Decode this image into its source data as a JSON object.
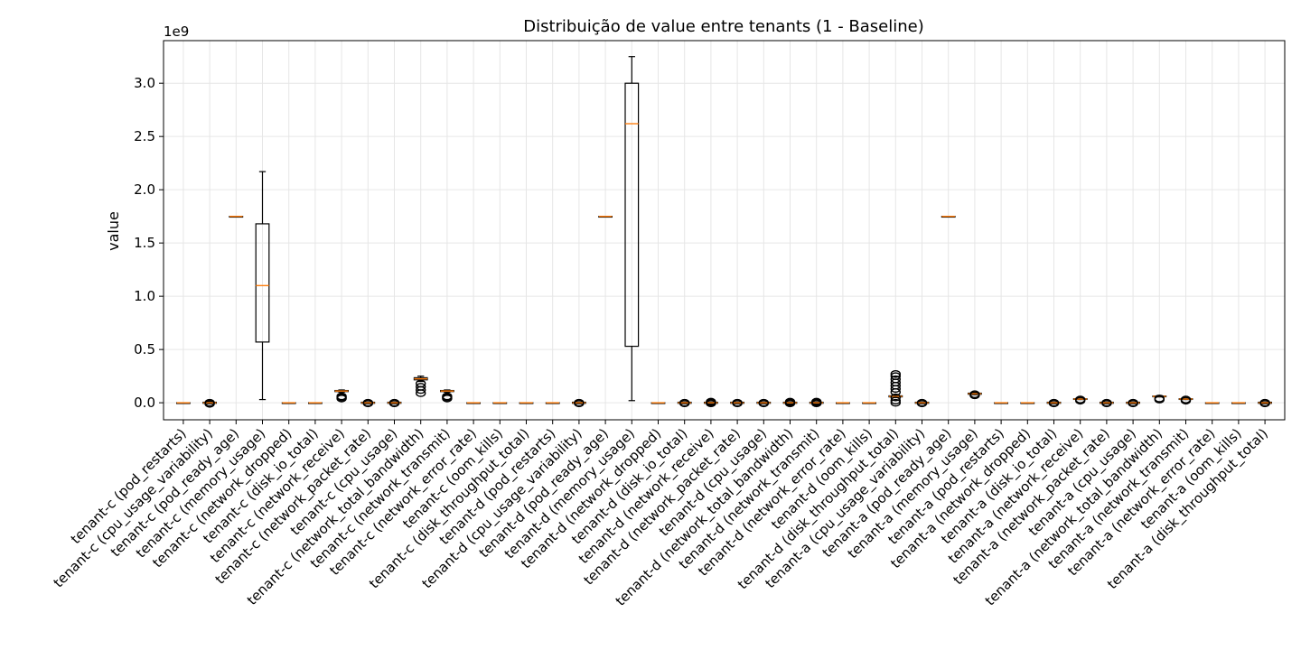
{
  "chart_data": {
    "type": "box",
    "title": "Distribuição de value entre tenants (1 - Baseline)",
    "ylabel": "value",
    "xlabel": "",
    "y_offset_label": "1e9",
    "y_scale": 1000000000,
    "ylim": [
      -0.16,
      3.4
    ],
    "yticks": [
      0.0,
      0.5,
      1.0,
      1.5,
      2.0,
      2.5,
      3.0
    ],
    "ytick_labels": [
      "0.0",
      "0.5",
      "1.0",
      "1.5",
      "2.0",
      "2.5",
      "3.0"
    ],
    "grid": true,
    "colors": {
      "box": "#000000",
      "median": "#ff7f0e",
      "grid": "#e6e6e6",
      "background": "#ffffff"
    },
    "boxes": [
      {
        "label": "tenant-c (pod_restarts)",
        "whislo": 0,
        "q1": 0,
        "med": 0,
        "q3": 0,
        "whishi": 0,
        "fliers": []
      },
      {
        "label": "tenant-c (cpu_usage_variability)",
        "whislo": -0.01,
        "q1": -0.005,
        "med": 0,
        "q3": 0.005,
        "whishi": 0.01,
        "fliers": [
          0.0,
          -0.01
        ]
      },
      {
        "label": "tenant-c (pod_ready_age)",
        "whislo": 1.75,
        "q1": 1.75,
        "med": 1.75,
        "q3": 1.75,
        "whishi": 1.75,
        "fliers": []
      },
      {
        "label": "tenant-c (memory_usage)",
        "whislo": 0.03,
        "q1": 0.57,
        "med": 1.1,
        "q3": 1.68,
        "whishi": 2.17,
        "fliers": []
      },
      {
        "label": "tenant-c (network_dropped)",
        "whislo": 0,
        "q1": 0,
        "med": 0,
        "q3": 0,
        "whishi": 0,
        "fliers": []
      },
      {
        "label": "tenant-c (disk_io_total)",
        "whislo": 0,
        "q1": 0,
        "med": 0,
        "q3": 0,
        "whishi": 0,
        "fliers": []
      },
      {
        "label": "tenant-c (network_receive)",
        "whislo": 0.1,
        "q1": 0.105,
        "med": 0.11,
        "q3": 0.115,
        "whishi": 0.12,
        "fliers": [
          0.04,
          0.05,
          0.06
        ]
      },
      {
        "label": "tenant-c (network_packet_rate)",
        "whislo": -0.01,
        "q1": -0.005,
        "med": 0,
        "q3": 0.005,
        "whishi": 0.01,
        "fliers": [
          0.0,
          -0.005
        ]
      },
      {
        "label": "tenant-c (cpu_usage)",
        "whislo": -0.01,
        "q1": -0.005,
        "med": 0,
        "q3": 0.005,
        "whishi": 0.01,
        "fliers": [
          0.0,
          -0.005
        ]
      },
      {
        "label": "tenant-c (network_total_bandwidth)",
        "whislo": 0.2,
        "q1": 0.215,
        "med": 0.225,
        "q3": 0.235,
        "whishi": 0.25,
        "fliers": [
          0.09,
          0.12,
          0.15,
          0.18
        ]
      },
      {
        "label": "tenant-c (network_transmit)",
        "whislo": 0.1,
        "q1": 0.105,
        "med": 0.11,
        "q3": 0.115,
        "whishi": 0.12,
        "fliers": [
          0.04,
          0.05,
          0.06
        ]
      },
      {
        "label": "tenant-c (network_error_rate)",
        "whislo": 0,
        "q1": 0,
        "med": 0,
        "q3": 0,
        "whishi": 0,
        "fliers": []
      },
      {
        "label": "tenant-c (oom_kills)",
        "whislo": 0,
        "q1": 0,
        "med": 0,
        "q3": 0,
        "whishi": 0,
        "fliers": []
      },
      {
        "label": "tenant-c (disk_throughput_total)",
        "whislo": 0,
        "q1": 0,
        "med": 0,
        "q3": 0,
        "whishi": 0,
        "fliers": []
      },
      {
        "label": "tenant-d (pod_restarts)",
        "whislo": 0,
        "q1": 0,
        "med": 0,
        "q3": 0,
        "whishi": 0,
        "fliers": []
      },
      {
        "label": "tenant-d (cpu_usage_variability)",
        "whislo": -0.01,
        "q1": -0.005,
        "med": 0,
        "q3": 0.005,
        "whishi": 0.01,
        "fliers": [
          0.0,
          -0.005
        ]
      },
      {
        "label": "tenant-d (pod_ready_age)",
        "whislo": 1.75,
        "q1": 1.75,
        "med": 1.75,
        "q3": 1.75,
        "whishi": 1.75,
        "fliers": []
      },
      {
        "label": "tenant-d (memory_usage)",
        "whislo": 0.02,
        "q1": 0.53,
        "med": 2.62,
        "q3": 3.0,
        "whishi": 3.25,
        "fliers": []
      },
      {
        "label": "tenant-d (network_dropped)",
        "whislo": 0,
        "q1": 0,
        "med": 0,
        "q3": 0,
        "whishi": 0,
        "fliers": []
      },
      {
        "label": "tenant-d (disk_io_total)",
        "whislo": -0.01,
        "q1": -0.005,
        "med": 0,
        "q3": 0.005,
        "whishi": 0.01,
        "fliers": [
          0.0,
          -0.005
        ]
      },
      {
        "label": "tenant-d (network_receive)",
        "whislo": -0.01,
        "q1": -0.005,
        "med": 0,
        "q3": 0.005,
        "whishi": 0.01,
        "fliers": [
          0.0,
          0.01,
          -0.005
        ]
      },
      {
        "label": "tenant-d (network_packet_rate)",
        "whislo": -0.01,
        "q1": -0.005,
        "med": 0,
        "q3": 0.005,
        "whishi": 0.01,
        "fliers": [
          0.0,
          -0.005
        ]
      },
      {
        "label": "tenant-d (cpu_usage)",
        "whislo": -0.01,
        "q1": -0.005,
        "med": 0,
        "q3": 0.005,
        "whishi": 0.01,
        "fliers": [
          0.0,
          -0.005
        ]
      },
      {
        "label": "tenant-d (network_total_bandwidth)",
        "whislo": -0.01,
        "q1": -0.005,
        "med": 0,
        "q3": 0.005,
        "whishi": 0.01,
        "fliers": [
          0.0,
          0.01,
          -0.005
        ]
      },
      {
        "label": "tenant-d (network_transmit)",
        "whislo": -0.01,
        "q1": -0.005,
        "med": 0,
        "q3": 0.005,
        "whishi": 0.01,
        "fliers": [
          0.0,
          0.01,
          -0.005
        ]
      },
      {
        "label": "tenant-d (network_error_rate)",
        "whislo": 0,
        "q1": 0,
        "med": 0,
        "q3": 0,
        "whishi": 0,
        "fliers": []
      },
      {
        "label": "tenant-d (oom_kills)",
        "whislo": 0,
        "q1": 0,
        "med": 0,
        "q3": 0,
        "whishi": 0,
        "fliers": []
      },
      {
        "label": "tenant-d (disk_throughput_total)",
        "whislo": 0.05,
        "q1": 0.055,
        "med": 0.06,
        "q3": 0.065,
        "whishi": 0.07,
        "fliers": [
          0.0,
          0.02,
          0.05,
          0.1,
          0.13,
          0.16,
          0.19,
          0.22,
          0.25,
          0.27
        ]
      },
      {
        "label": "tenant-a (cpu_usage_variability)",
        "whislo": -0.01,
        "q1": -0.005,
        "med": 0,
        "q3": 0.005,
        "whishi": 0.01,
        "fliers": [
          0.0,
          -0.005
        ]
      },
      {
        "label": "tenant-a (pod_ready_age)",
        "whislo": 1.75,
        "q1": 1.75,
        "med": 1.75,
        "q3": 1.75,
        "whishi": 1.75,
        "fliers": []
      },
      {
        "label": "tenant-a (memory_usage)",
        "whislo": 0.075,
        "q1": 0.08,
        "med": 0.085,
        "q3": 0.09,
        "whishi": 0.095,
        "fliers": [
          0.07,
          0.08
        ]
      },
      {
        "label": "tenant-a (pod_restarts)",
        "whislo": 0,
        "q1": 0,
        "med": 0,
        "q3": 0,
        "whishi": 0,
        "fliers": []
      },
      {
        "label": "tenant-a (network_dropped)",
        "whislo": 0,
        "q1": 0,
        "med": 0,
        "q3": 0,
        "whishi": 0,
        "fliers": []
      },
      {
        "label": "tenant-a (disk_io_total)",
        "whislo": -0.01,
        "q1": -0.005,
        "med": 0,
        "q3": 0.005,
        "whishi": 0.01,
        "fliers": [
          0.0,
          -0.005
        ]
      },
      {
        "label": "tenant-a (network_receive)",
        "whislo": 0.03,
        "q1": 0.032,
        "med": 0.035,
        "q3": 0.038,
        "whishi": 0.04,
        "fliers": [
          0.02,
          0.03
        ]
      },
      {
        "label": "tenant-a (network_packet_rate)",
        "whislo": -0.01,
        "q1": -0.005,
        "med": 0,
        "q3": 0.005,
        "whishi": 0.01,
        "fliers": [
          0.0,
          -0.005
        ]
      },
      {
        "label": "tenant-a (cpu_usage)",
        "whislo": -0.01,
        "q1": -0.005,
        "med": 0,
        "q3": 0.005,
        "whishi": 0.01,
        "fliers": [
          0.0,
          -0.005
        ]
      },
      {
        "label": "tenant-a (network_total_bandwidth)",
        "whislo": 0.055,
        "q1": 0.058,
        "med": 0.06,
        "q3": 0.063,
        "whishi": 0.066,
        "fliers": [
          0.03,
          0.04
        ]
      },
      {
        "label": "tenant-a (network_transmit)",
        "whislo": 0.03,
        "q1": 0.032,
        "med": 0.035,
        "q3": 0.038,
        "whishi": 0.04,
        "fliers": [
          0.02,
          0.03
        ]
      },
      {
        "label": "tenant-a (network_error_rate)",
        "whislo": 0,
        "q1": 0,
        "med": 0,
        "q3": 0,
        "whishi": 0,
        "fliers": []
      },
      {
        "label": "tenant-a (oom_kills)",
        "whislo": 0,
        "q1": 0,
        "med": 0,
        "q3": 0,
        "whishi": 0,
        "fliers": []
      },
      {
        "label": "tenant-a (disk_throughput_total)",
        "whislo": -0.01,
        "q1": -0.005,
        "med": 0,
        "q3": 0.005,
        "whishi": 0.01,
        "fliers": [
          0.0,
          -0.005
        ]
      }
    ]
  }
}
